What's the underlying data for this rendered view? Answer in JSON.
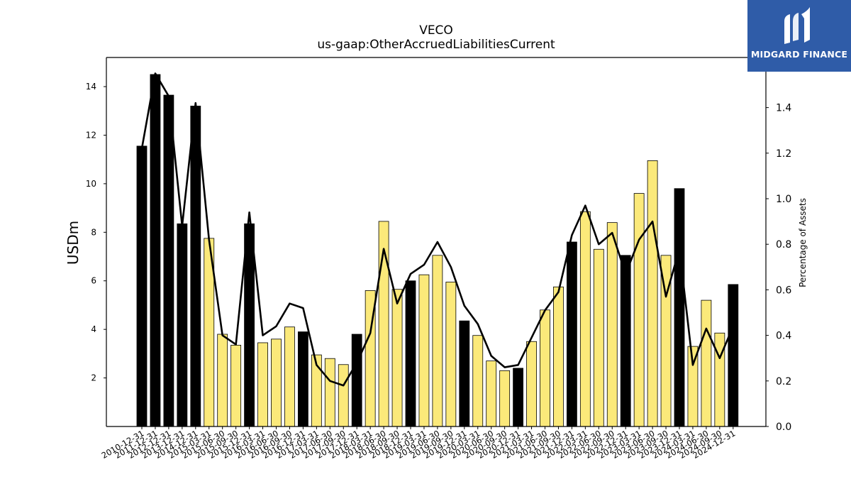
{
  "chart_data": {
    "type": "bar",
    "title": "VECO",
    "subtitle": "us-gaap:OtherAccruedLiabilitiesCurrent",
    "ylabel": "USDm",
    "y2label": "Percentage of Assets",
    "ylim": [
      0,
      15.2
    ],
    "y2lim": [
      0,
      1.62
    ],
    "yticks": [
      2,
      4,
      6,
      8,
      10,
      12,
      14
    ],
    "y2ticks": [
      "0.0",
      "0.2",
      "0.4",
      "0.6",
      "0.8",
      "1.0",
      "1.2",
      "1.4"
    ],
    "grid": false,
    "colors": {
      "annual": "#000000",
      "quarter": "#fbe97a",
      "line": "#000000"
    },
    "categories": [
      "2010-12-31",
      "2011-12-31",
      "2012-12-31",
      "2013-12-31",
      "2014-12-31",
      "2015-03-31",
      "2015-06-30",
      "2015-09-30",
      "2015-12-31",
      "2016-03-31",
      "2016-06-30",
      "2016-09-30",
      "2016-12-31",
      "2017-03-31",
      "2017-06-30",
      "2017-09-30",
      "2017-12-31",
      "2018-03-31",
      "2018-06-30",
      "2018-09-30",
      "2018-12-31",
      "2019-03-31",
      "2019-06-30",
      "2019-09-30",
      "2019-12-31",
      "2020-03-31",
      "2020-06-30",
      "2020-09-30",
      "2020-12-31",
      "2021-03-31",
      "2021-06-30",
      "2021-09-30",
      "2021-12-31",
      "2022-03-31",
      "2022-06-30",
      "2022-09-30",
      "2022-12-31",
      "2023-03-31",
      "2023-06-30",
      "2023-09-30",
      "2023-12-31",
      "2024-03-31",
      "2024-06-30",
      "2024-09-30",
      "2024-12-31"
    ],
    "values": [
      11.55,
      14.5,
      13.65,
      8.35,
      13.2,
      7.75,
      3.8,
      3.35,
      8.35,
      3.45,
      3.6,
      4.1,
      3.9,
      2.95,
      2.8,
      2.55,
      3.8,
      5.6,
      8.45,
      5.65,
      6.0,
      6.25,
      7.05,
      5.95,
      4.35,
      3.75,
      2.7,
      2.3,
      2.4,
      3.5,
      4.8,
      5.75,
      7.6,
      8.85,
      7.3,
      8.4,
      7.05,
      9.6,
      10.95,
      7.05,
      9.8,
      3.3,
      5.2,
      3.85,
      5.85
    ],
    "annual_flags": [
      1,
      1,
      1,
      1,
      1,
      0,
      0,
      0,
      1,
      0,
      0,
      0,
      1,
      0,
      0,
      0,
      1,
      0,
      0,
      0,
      1,
      0,
      0,
      0,
      1,
      0,
      0,
      0,
      1,
      0,
      0,
      0,
      1,
      0,
      0,
      0,
      1,
      0,
      0,
      0,
      1,
      0,
      0,
      0,
      1
    ],
    "series": [
      {
        "values": [
          1.22,
          1.55,
          1.45,
          0.88,
          1.42,
          0.82,
          0.4,
          0.36,
          0.94,
          0.4,
          0.44,
          0.54,
          0.52,
          0.27,
          0.2,
          0.18,
          0.28,
          0.41,
          0.78,
          0.54,
          0.67,
          0.71,
          0.81,
          0.7,
          0.53,
          0.45,
          0.31,
          0.26,
          0.27,
          0.39,
          0.51,
          0.59,
          0.84,
          0.97,
          0.8,
          0.85,
          0.67,
          0.82,
          0.9,
          0.57,
          0.78,
          0.27,
          0.43,
          0.3,
          0.44
        ]
      }
    ]
  },
  "brand": {
    "name": "MIDGARD FINANCE"
  }
}
